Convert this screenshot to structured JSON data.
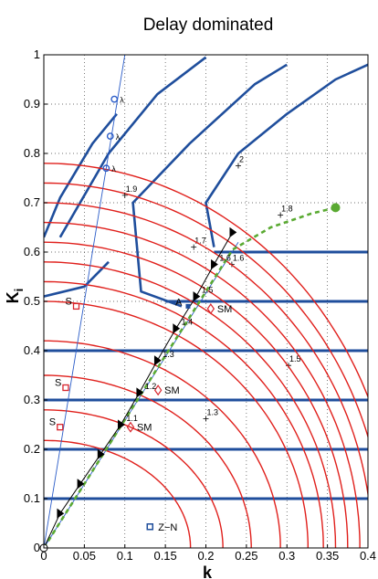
{
  "chart_data": {
    "type": "line",
    "title": "Delay dominated",
    "xlabel": "k",
    "ylabel": "K_i",
    "ylabel_main": "K",
    "ylabel_sub": "i",
    "xlim": [
      0,
      0.4
    ],
    "ylim": [
      0,
      1
    ],
    "grid": true,
    "grid_style": "dotted",
    "x_ticks": [
      0,
      0.05,
      0.1,
      0.15,
      0.2,
      0.25,
      0.3,
      0.35,
      0.4
    ],
    "x_tick_labels": [
      "0",
      "0.05",
      "0.1",
      "0.15",
      "0.2",
      "0.25",
      "0.3",
      "0.35",
      "0.4"
    ],
    "y_ticks": [
      0,
      0.1,
      0.2,
      0.3,
      0.4,
      0.5,
      0.6,
      0.7,
      0.8,
      0.9,
      1
    ],
    "y_tick_labels": [
      "0",
      "0.1",
      "0.2",
      "0.3",
      "0.4",
      "0.5",
      "0.6",
      "0.7",
      "0.8",
      "0.9",
      "1"
    ],
    "colors": {
      "red_contours": "#e0201c",
      "blue_contours": "#1f4e9c",
      "thin_blue": "#2a5cc8",
      "dashed_green": "#5aaa32",
      "black_path": "#000000",
      "square_marker": "#d8242c",
      "sm_diamond": "#d8242c",
      "z_n_square": "#1f4e9c",
      "green_dot": "#5aaa32",
      "grid": "#444444"
    },
    "red_contours": [
      {
        "label": "1.3",
        "x_intercept": 0.181,
        "y_apex": 0.218,
        "label_at": [
          0.2,
          0.262
        ]
      },
      {
        "label": "",
        "x_intercept": 0.221,
        "y_apex": 0.28,
        "label_at": null
      },
      {
        "label": "",
        "x_intercept": 0.256,
        "y_apex": 0.35,
        "label_at": null
      },
      {
        "label": "",
        "x_intercept": 0.292,
        "y_apex": 0.42,
        "label_at": null
      },
      {
        "label": "",
        "x_intercept": 0.326,
        "y_apex": 0.5,
        "label_at": null
      },
      {
        "label": "1.5",
        "x_intercept": 0.345,
        "y_apex": 0.54,
        "label_at": [
          0.302,
          0.37
        ]
      },
      {
        "label": "",
        "x_intercept": 0.36,
        "y_apex": 0.58,
        "label_at": null
      },
      {
        "label": "1.6",
        "x_intercept": 0.375,
        "y_apex": 0.62,
        "label_at": [
          0.232,
          0.575
        ]
      },
      {
        "label": "1.7",
        "x_intercept": 0.39,
        "y_apex": 0.66,
        "label_at": [
          0.185,
          0.61
        ]
      },
      {
        "label": "1.8",
        "x_intercept": 0.405,
        "y_apex": 0.7,
        "label_at": [
          0.292,
          0.675
        ]
      },
      {
        "label": "1.9",
        "x_intercept": 0.42,
        "y_apex": 0.74,
        "label_at": [
          0.1,
          0.715
        ]
      },
      {
        "label": "2",
        "x_intercept": 0.435,
        "y_apex": 0.78,
        "label_at": [
          0.24,
          0.775
        ]
      }
    ],
    "horizontal_blue_lines": [
      0.1,
      0.2,
      0.3,
      0.4,
      0.5,
      0.6
    ],
    "black_path": {
      "points": [
        [
          0,
          0
        ],
        [
          0.02,
          0.07
        ],
        [
          0.045,
          0.13
        ],
        [
          0.07,
          0.19
        ],
        [
          0.095,
          0.25
        ],
        [
          0.118,
          0.315
        ],
        [
          0.14,
          0.38
        ],
        [
          0.163,
          0.445
        ],
        [
          0.188,
          0.51
        ],
        [
          0.21,
          0.575
        ],
        [
          0.233,
          0.64
        ]
      ],
      "ratio_labels": [
        "1.1",
        "1.2",
        "1.3",
        "1.4",
        "1.5",
        "1.6"
      ]
    },
    "green_dashed_path": [
      [
        0,
        0
      ],
      [
        0.05,
        0.13
      ],
      [
        0.1,
        0.26
      ],
      [
        0.15,
        0.39
      ],
      [
        0.2,
        0.52
      ],
      [
        0.233,
        0.605
      ],
      [
        0.28,
        0.65
      ],
      [
        0.33,
        0.678
      ],
      [
        0.36,
        0.69
      ]
    ],
    "green_dot": [
      0.36,
      0.69
    ],
    "lambda_markers": [
      {
        "label": "λ",
        "x": 0.087,
        "y": 0.91
      },
      {
        "label": "λ",
        "x": 0.082,
        "y": 0.835
      },
      {
        "label": "λ",
        "x": 0.077,
        "y": 0.77
      }
    ],
    "s_markers": [
      {
        "label": "S",
        "x": 0.04,
        "y": 0.49
      },
      {
        "label": "S",
        "x": 0.027,
        "y": 0.325
      },
      {
        "label": "S",
        "x": 0.02,
        "y": 0.245
      }
    ],
    "sm_markers": [
      {
        "label": "SM",
        "x": 0.206,
        "y": 0.485
      },
      {
        "label": "SM",
        "x": 0.141,
        "y": 0.32
      },
      {
        "label": "SM",
        "x": 0.107,
        "y": 0.245
      }
    ],
    "a_marker": {
      "label": "A",
      "x": 0.178,
      "y": 0.49
    },
    "legend": {
      "label": "Z−N",
      "x": 0.131,
      "y": 0.043
    },
    "blue_thin_lines": [
      {
        "from": [
          0,
          0
        ],
        "to": [
          0.1,
          1
        ]
      },
      {
        "from": [
          0,
          0
        ],
        "to": [
          0.24,
          0.62
        ]
      }
    ]
  }
}
